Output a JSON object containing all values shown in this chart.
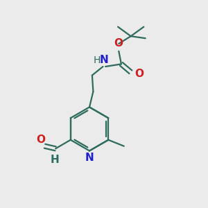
{
  "bg_color": "#ebebeb",
  "bond_color": "#2d6b5e",
  "n_color": "#2020cc",
  "o_color": "#cc2020",
  "lw": 1.6,
  "fig_size": [
    3.0,
    3.0
  ],
  "dpi": 100,
  "xlim": [
    0,
    10
  ],
  "ylim": [
    0,
    10
  ]
}
